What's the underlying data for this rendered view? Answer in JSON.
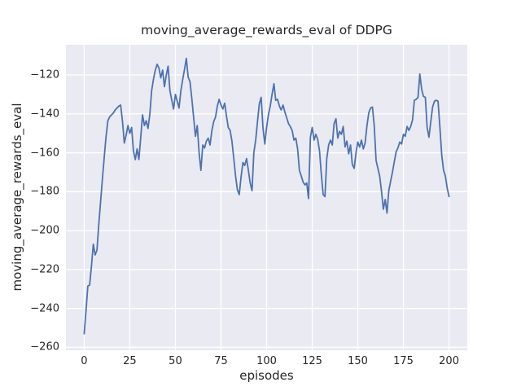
{
  "chart_data": {
    "type": "line",
    "title": "moving_average_rewards_eval of DDPG",
    "xlabel": "episodes",
    "ylabel": "moving_average_rewards_eval",
    "legend": null,
    "grid": true,
    "grid_color": "#ffffff",
    "axes_background": "#eaeaf2",
    "figure_background": "#ffffff",
    "line_color": "#4c72b0",
    "text_color": "#262626",
    "xlim": [
      -10,
      210
    ],
    "ylim": [
      -261.5,
      -104.5
    ],
    "x_ticks": [
      0,
      25,
      50,
      75,
      100,
      125,
      150,
      175,
      200
    ],
    "x_tick_labels": [
      "0",
      "25",
      "50",
      "75",
      "100",
      "125",
      "150",
      "175",
      "200"
    ],
    "y_ticks": [
      -120,
      -140,
      -160,
      -180,
      -200,
      -220,
      -240,
      -260
    ],
    "y_tick_labels": [
      "−120",
      "−140",
      "−160",
      "−180",
      "−200",
      "−220",
      "−240",
      "−260"
    ],
    "x_start": 0,
    "x_step": 1,
    "values": [
      -253,
      -241,
      -228.5,
      -228,
      -218,
      -207,
      -212.5,
      -210,
      -197,
      -185,
      -173.5,
      -162,
      -151.5,
      -143.5,
      -141.5,
      -140.5,
      -139.5,
      -138,
      -137,
      -136,
      -135.5,
      -144,
      -155,
      -151,
      -146,
      -150,
      -147,
      -159,
      -163.5,
      -158,
      -163.5,
      -152,
      -140.5,
      -146,
      -143.5,
      -147.5,
      -140,
      -128,
      -122,
      -117.5,
      -114.5,
      -116.5,
      -121.5,
      -117.5,
      -126,
      -120,
      -115.5,
      -128,
      -133,
      -137.5,
      -130,
      -133.5,
      -137,
      -128,
      -122.5,
      -117,
      -111.5,
      -121,
      -123.5,
      -132,
      -142,
      -151.5,
      -146,
      -160,
      -169,
      -156,
      -157.5,
      -154,
      -152.5,
      -156,
      -148.5,
      -144,
      -141.5,
      -136,
      -132.5,
      -135.5,
      -137.5,
      -134.5,
      -141,
      -147,
      -148.5,
      -154,
      -163,
      -172,
      -179,
      -181.5,
      -172.5,
      -165,
      -166.5,
      -163,
      -169,
      -175.5,
      -179.5,
      -160,
      -153.5,
      -144,
      -135,
      -131.5,
      -147,
      -155.5,
      -147,
      -140.5,
      -136,
      -130,
      -124.5,
      -133,
      -132.5,
      -136,
      -138,
      -135.5,
      -139,
      -142,
      -145,
      -146.5,
      -148.5,
      -153.5,
      -152.5,
      -158,
      -169,
      -172,
      -175,
      -176.5,
      -175.5,
      -183.5,
      -152,
      -147,
      -153.5,
      -150.5,
      -153,
      -159,
      -171,
      -181.5,
      -182.5,
      -163,
      -156,
      -153.5,
      -156,
      -145,
      -142.5,
      -152.5,
      -149,
      -150.5,
      -146.5,
      -157,
      -154,
      -160.5,
      -156,
      -166,
      -168,
      -160,
      -154.5,
      -157,
      -153.5,
      -158,
      -155,
      -146,
      -139.5,
      -137,
      -136.5,
      -146,
      -164,
      -168,
      -172,
      -180,
      -189,
      -184,
      -191,
      -179.5,
      -174.5,
      -170,
      -164.5,
      -159.5,
      -157.5,
      -154.5,
      -155.5,
      -150.5,
      -151.5,
      -146.5,
      -148.5,
      -146.5,
      -143,
      -133,
      -132.5,
      -131.5,
      -119.5,
      -127.5,
      -131,
      -131.5,
      -147,
      -152,
      -144,
      -136.5,
      -133.5,
      -133,
      -133.5,
      -147,
      -161,
      -169,
      -172,
      -178,
      -182.5
    ]
  }
}
